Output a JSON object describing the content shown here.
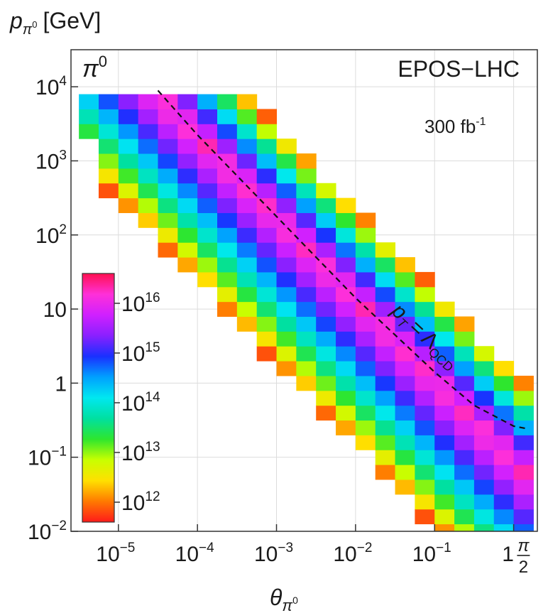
{
  "chart_data": {
    "type": "heatmap",
    "title": "",
    "ylabel": {
      "symbol": "p",
      "sub": "π",
      "subsup": "0",
      "unit": "[GeV]"
    },
    "xlabel": {
      "symbol": "θ",
      "sub": "π",
      "subsup": "0"
    },
    "x_scale": "log",
    "y_scale": "log",
    "xlim_log10": [
      -5.6,
      0.3
    ],
    "ylim_log10": [
      -2,
      4.5
    ],
    "x_ticks": [
      {
        "base": "10",
        "exp": "−5",
        "log": -5
      },
      {
        "base": "10",
        "exp": "−4",
        "log": -4
      },
      {
        "base": "10",
        "exp": "−3",
        "log": -3
      },
      {
        "base": "10",
        "exp": "−2",
        "log": -2
      },
      {
        "base": "10",
        "exp": "−1",
        "log": -1
      },
      {
        "base": "1",
        "exp": "",
        "log": 0
      }
    ],
    "x_tick_extra": {
      "num": "π",
      "den": "2",
      "log": 0.196
    },
    "y_ticks": [
      {
        "base": "10",
        "exp": "4",
        "log": 4
      },
      {
        "base": "10",
        "exp": "3",
        "log": 3
      },
      {
        "base": "10",
        "exp": "2",
        "log": 2
      },
      {
        "base": "10",
        "exp": "",
        "log": 1
      },
      {
        "base": "1",
        "exp": "",
        "log": 0
      },
      {
        "base": "10",
        "exp": "−1",
        "log": -1
      },
      {
        "base": "10",
        "exp": "−2",
        "log": -2
      }
    ],
    "particle_label": {
      "symbol": "π",
      "sup": "0"
    },
    "model_label": "EPOS−LHC",
    "luminosity": {
      "value": "300 fb",
      "sup": "-1"
    },
    "curve_label": {
      "p": "p",
      "sub_t": "T",
      "eq": "=",
      "lambda": "Λ",
      "sub": "QCD"
    },
    "curve_points_log10": [
      [
        -4.5,
        3.95
      ],
      [
        -4.0,
        3.35
      ],
      [
        -3.5,
        2.8
      ],
      [
        -3.0,
        2.25
      ],
      [
        -2.5,
        1.7
      ],
      [
        -2.0,
        1.15
      ],
      [
        -1.5,
        0.65
      ],
      [
        -1.0,
        0.15
      ],
      [
        -0.5,
        -0.3
      ],
      [
        0.0,
        -0.58
      ],
      [
        0.196,
        -0.62
      ]
    ],
    "colorbar": {
      "ticks": [
        {
          "base": "10",
          "exp": "16",
          "log": 16
        },
        {
          "base": "10",
          "exp": "15",
          "log": 15
        },
        {
          "base": "10",
          "exp": "14",
          "log": 14
        },
        {
          "base": "10",
          "exp": "13",
          "log": 13
        },
        {
          "base": "10",
          "exp": "12",
          "log": 12
        }
      ],
      "range_log10": [
        11.6,
        16.6
      ],
      "colors": [
        "#ff1a1a",
        "#ff7a00",
        "#ffe000",
        "#c8ff00",
        "#2ee62e",
        "#00e0a0",
        "#00e8f0",
        "#00a0ff",
        "#1a30ff",
        "#8a20ff",
        "#d020ff",
        "#ff30d8",
        "#ff1050"
      ]
    },
    "grid": true,
    "bins": {
      "x_start_log10": -5.5,
      "x_step_log10": 0.25,
      "x_count": 24,
      "y_start_log10": -2.1,
      "y_step_log10": 0.2,
      "y_count": 33,
      "description_params": {
        "slope": -1.1,
        "offset": -1.0,
        "halfwidth_hi": 1.25,
        "halfwidth_lo": 2.0,
        "peak_log10": 16.3,
        "edge_log10": 11.7
      }
    }
  }
}
